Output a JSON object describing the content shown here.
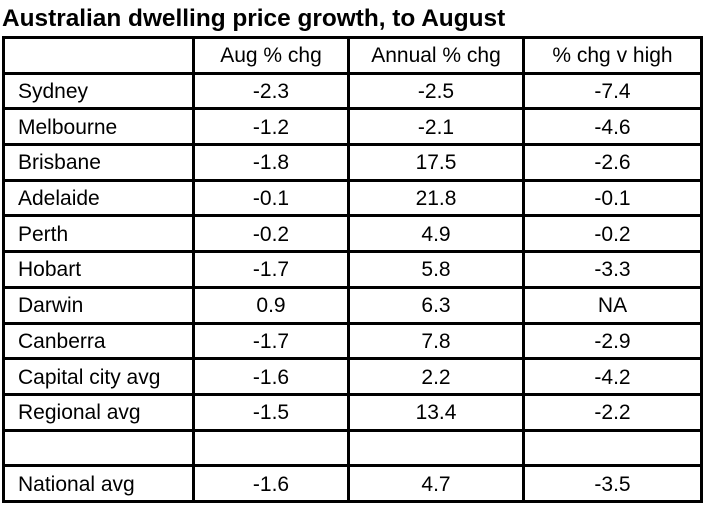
{
  "title": "Australian dwelling price growth, to August",
  "table": {
    "columns": [
      "",
      "Aug % chg",
      "Annual % chg",
      "% chg v high"
    ],
    "rows": [
      {
        "name": "Sydney",
        "aug": "-2.3",
        "annual": "-2.5",
        "vs_high": "-7.4"
      },
      {
        "name": "Melbourne",
        "aug": "-1.2",
        "annual": "-2.1",
        "vs_high": "-4.6"
      },
      {
        "name": "Brisbane",
        "aug": "-1.8",
        "annual": "17.5",
        "vs_high": "-2.6"
      },
      {
        "name": "Adelaide",
        "aug": "-0.1",
        "annual": "21.8",
        "vs_high": "-0.1"
      },
      {
        "name": "Perth",
        "aug": "-0.2",
        "annual": "4.9",
        "vs_high": "-0.2"
      },
      {
        "name": "Hobart",
        "aug": "-1.7",
        "annual": "5.8",
        "vs_high": "-3.3"
      },
      {
        "name": "Darwin",
        "aug": "0.9",
        "annual": "6.3",
        "vs_high": "NA"
      },
      {
        "name": "Canberra",
        "aug": "-1.7",
        "annual": "7.8",
        "vs_high": "-2.9"
      },
      {
        "name": "Capital city avg",
        "aug": "-1.6",
        "annual": "2.2",
        "vs_high": "-4.2"
      },
      {
        "name": "Regional avg",
        "aug": "-1.5",
        "annual": "13.4",
        "vs_high": "-2.2"
      },
      {
        "name": "",
        "aug": "",
        "annual": "",
        "vs_high": ""
      },
      {
        "name": "National avg",
        "aug": "-1.6",
        "annual": "4.7",
        "vs_high": "-3.5"
      }
    ]
  }
}
